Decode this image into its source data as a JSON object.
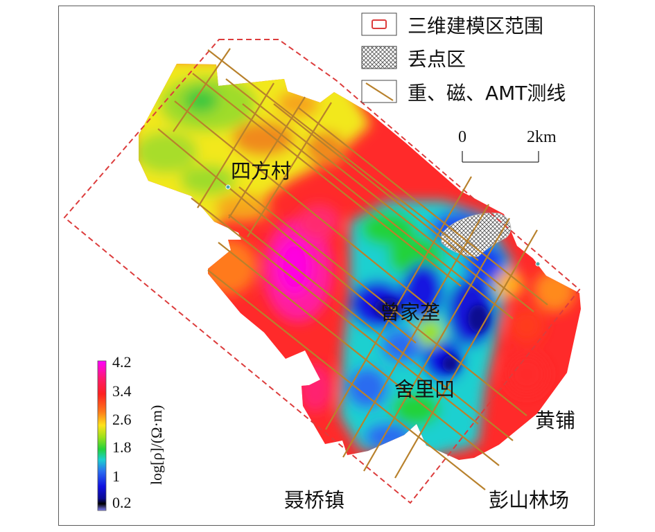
{
  "legend": {
    "items": [
      {
        "icon": "red-dashed-rectangle-icon",
        "label": "三维建模区范围"
      },
      {
        "icon": "crosshatch-swatch-icon",
        "label": "丢点区"
      },
      {
        "icon": "survey-line-icon",
        "label": "重、磁、AMT测线"
      }
    ]
  },
  "scale_bar": {
    "start_label": "0",
    "end_label": "2km"
  },
  "places": {
    "sifangcun": "四方村",
    "zengjiawa": "曾家垄",
    "shelibao": "舍里凹",
    "huangpu": "黄铺",
    "nieqiaozhen": "聂桥镇",
    "pengshanlinchang": "彭山林场"
  },
  "colorbar": {
    "title": "log[ρ]/(Ω·m)",
    "ticks": [
      "4.2",
      "3.4",
      "2.6",
      "1.8",
      "1",
      "0.2"
    ],
    "colors": [
      "#ff00ff",
      "#ff1a4a",
      "#ff3a1f",
      "#ff8a1a",
      "#ffe21a",
      "#9be11a",
      "#22d23a",
      "#1ad0d0",
      "#2a6cf0",
      "#1010e0",
      "#0a0a90",
      "#000000",
      "#8080ff"
    ]
  },
  "colors": {
    "boundary": "#dc3c3c",
    "survey_line": "#b8812c",
    "frame": "#5a5a5a"
  }
}
